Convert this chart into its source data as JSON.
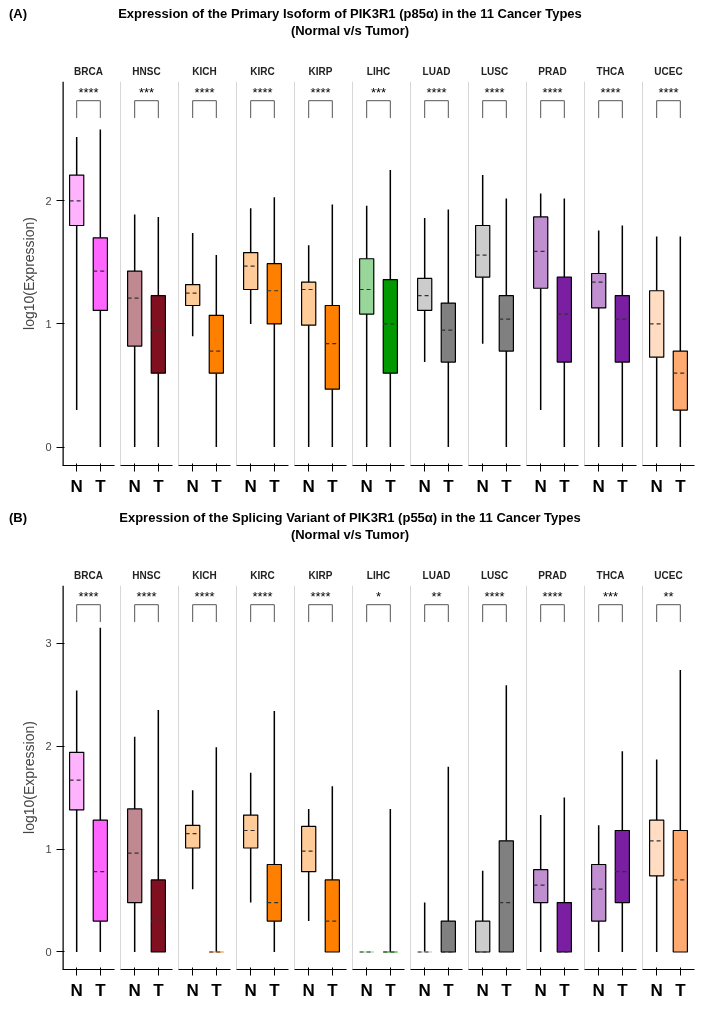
{
  "chart_data": [
    {
      "type": "box",
      "title": "BRCA",
      "ylabel": "log10(Expression)",
      "categories": [
        "N",
        "T"
      ],
      "ylim": [
        -0.15,
        2.97
      ],
      "yticks": [
        0,
        1,
        2
      ],
      "grid": false,
      "annotations": [
        "****",
        "(A)",
        "Expression of the Primary Isoform of PIK3R1 (p85α) in the 11 Cancer Types",
        "(Normal v/s Tumor)"
      ],
      "colors": [
        "#ffb3ff",
        "#ff66ff"
      ],
      "boxes": [
        {
          "low": 0.3,
          "q1": 1.8,
          "median": 2.0,
          "q3": 2.21,
          "high": 2.52
        },
        {
          "low": 0,
          "q1": 1.11,
          "median": 1.43,
          "q3": 1.7,
          "high": 2.58
        }
      ]
    },
    {
      "type": "box",
      "title": "HNSC",
      "categories": [
        "N",
        "T"
      ],
      "ylim": [
        -0.15,
        2.97
      ],
      "tick_labels": "x",
      "grid": false,
      "annotations": [
        "***"
      ],
      "colors": [
        "#c08890",
        "#800f20"
      ],
      "boxes": [
        {
          "low": 0,
          "q1": 0.82,
          "median": 1.21,
          "q3": 1.43,
          "high": 1.89
        },
        {
          "low": 0,
          "q1": 0.6,
          "median": 0.95,
          "q3": 1.23,
          "high": 1.87
        }
      ]
    },
    {
      "type": "box",
      "title": "KICH",
      "categories": [
        "N",
        "T"
      ],
      "ylim": [
        -0.15,
        2.97
      ],
      "tick_labels": "x",
      "grid": false,
      "annotations": [
        "****"
      ],
      "colors": [
        "#ffcc99",
        "#ff8000"
      ],
      "boxes": [
        {
          "low": 0.9,
          "q1": 1.15,
          "median": 1.25,
          "q3": 1.32,
          "high": 1.74
        },
        {
          "low": 0,
          "q1": 0.6,
          "median": 0.78,
          "q3": 1.07,
          "high": 1.56
        }
      ]
    },
    {
      "type": "box",
      "title": "KIRC",
      "categories": [
        "N",
        "T"
      ],
      "ylim": [
        -0.15,
        2.97
      ],
      "tick_labels": "x",
      "grid": false,
      "annotations": [
        "****"
      ],
      "colors": [
        "#ffcc99",
        "#ff8000"
      ],
      "boxes": [
        {
          "low": 1.0,
          "q1": 1.28,
          "median": 1.47,
          "q3": 1.58,
          "high": 1.94
        },
        {
          "low": 0,
          "q1": 1.0,
          "median": 1.27,
          "q3": 1.49,
          "high": 2.03
        }
      ]
    },
    {
      "type": "box",
      "title": "KIRP",
      "categories": [
        "N",
        "T"
      ],
      "ylim": [
        -0.15,
        2.97
      ],
      "tick_labels": "x",
      "grid": false,
      "annotations": [
        "****"
      ],
      "colors": [
        "#ffcc99",
        "#ff8000"
      ],
      "boxes": [
        {
          "low": 0,
          "q1": 0.99,
          "median": 1.28,
          "q3": 1.34,
          "high": 1.64
        },
        {
          "low": 0,
          "q1": 0.47,
          "median": 0.84,
          "q3": 1.15,
          "high": 1.97
        }
      ]
    },
    {
      "type": "box",
      "title": "LIHC",
      "categories": [
        "N",
        "T"
      ],
      "ylim": [
        -0.15,
        2.97
      ],
      "tick_labels": "x",
      "grid": false,
      "annotations": [
        "***"
      ],
      "colors": [
        "#99d699",
        "#009900"
      ],
      "boxes": [
        {
          "low": 0,
          "q1": 1.08,
          "median": 1.28,
          "q3": 1.53,
          "high": 1.96
        },
        {
          "low": 0,
          "q1": 0.6,
          "median": 1.0,
          "q3": 1.36,
          "high": 2.25
        }
      ]
    },
    {
      "type": "box",
      "title": "LUAD",
      "categories": [
        "N",
        "T"
      ],
      "ylim": [
        -0.15,
        2.97
      ],
      "tick_labels": "x",
      "grid": false,
      "annotations": [
        "****"
      ],
      "colors": [
        "#cccccc",
        "#808080"
      ],
      "boxes": [
        {
          "low": 0.69,
          "q1": 1.11,
          "median": 1.23,
          "q3": 1.37,
          "high": 1.86
        },
        {
          "low": 0,
          "q1": 0.69,
          "median": 0.95,
          "q3": 1.17,
          "high": 1.93
        }
      ]
    },
    {
      "type": "box",
      "title": "LUSC",
      "categories": [
        "N",
        "T"
      ],
      "ylim": [
        -0.15,
        2.97
      ],
      "tick_labels": "x",
      "grid": false,
      "annotations": [
        "****"
      ],
      "colors": [
        "#cccccc",
        "#808080"
      ],
      "boxes": [
        {
          "low": 0.84,
          "q1": 1.38,
          "median": 1.56,
          "q3": 1.8,
          "high": 2.21
        },
        {
          "low": 0,
          "q1": 0.78,
          "median": 1.04,
          "q3": 1.23,
          "high": 2.02
        }
      ]
    },
    {
      "type": "box",
      "title": "PRAD",
      "categories": [
        "N",
        "T"
      ],
      "ylim": [
        -0.15,
        2.97
      ],
      "tick_labels": "x",
      "grid": false,
      "annotations": [
        "****"
      ],
      "colors": [
        "#c08fd0",
        "#7a1fa2"
      ],
      "boxes": [
        {
          "low": 0.3,
          "q1": 1.29,
          "median": 1.59,
          "q3": 1.87,
          "high": 2.06
        },
        {
          "low": 0,
          "q1": 0.69,
          "median": 1.08,
          "q3": 1.38,
          "high": 2.02
        }
      ]
    },
    {
      "type": "box",
      "title": "THCA",
      "categories": [
        "N",
        "T"
      ],
      "ylim": [
        -0.15,
        2.97
      ],
      "tick_labels": "x",
      "grid": false,
      "annotations": [
        "****"
      ],
      "colors": [
        "#c08fd0",
        "#7a1fa2"
      ],
      "boxes": [
        {
          "low": 0,
          "q1": 1.13,
          "median": 1.34,
          "q3": 1.41,
          "high": 1.76
        },
        {
          "low": 0,
          "q1": 0.69,
          "median": 1.04,
          "q3": 1.23,
          "high": 1.8
        }
      ]
    },
    {
      "type": "box",
      "title": "UCEC",
      "categories": [
        "N",
        "T"
      ],
      "ylim": [
        -0.15,
        2.97
      ],
      "tick_labels": "x",
      "grid": false,
      "annotations": [
        "****"
      ],
      "colors": [
        "#ffdcc2",
        "#ffaa70"
      ],
      "boxes": [
        {
          "low": 0,
          "q1": 0.73,
          "median": 1.0,
          "q3": 1.27,
          "high": 1.71
        },
        {
          "low": 0,
          "q1": 0.3,
          "median": 0.6,
          "q3": 0.78,
          "high": 1.71
        }
      ]
    },
    {
      "type": "box",
      "title": "BRCA",
      "ylabel": "log10(Expression)",
      "categories": [
        "N",
        "T"
      ],
      "ylim": [
        -0.17,
        3.56
      ],
      "yticks": [
        0,
        1,
        2,
        3
      ],
      "grid": false,
      "annotations": [
        "****",
        "(B)",
        "Expression of the Splicing Variant of PIK3R1 (p55α) in the 11 Cancer Types",
        "(Normal v/s Tumor)"
      ],
      "colors": [
        "#ffb3ff",
        "#ff66ff"
      ],
      "boxes": [
        {
          "low": 0,
          "q1": 1.38,
          "median": 1.67,
          "q3": 1.94,
          "high": 2.54
        },
        {
          "low": 0,
          "q1": 0.3,
          "median": 0.78,
          "q3": 1.28,
          "high": 3.15
        }
      ]
    },
    {
      "type": "box",
      "title": "HNSC",
      "categories": [
        "N",
        "T"
      ],
      "ylim": [
        -0.17,
        3.56
      ],
      "tick_labels": "x",
      "grid": false,
      "annotations": [
        "****"
      ],
      "colors": [
        "#c08890",
        "#800f20"
      ],
      "boxes": [
        {
          "low": 0,
          "q1": 0.48,
          "median": 0.96,
          "q3": 1.39,
          "high": 2.09
        },
        {
          "low": 0,
          "q1": 0,
          "median": 0.3,
          "q3": 0.7,
          "high": 2.35
        }
      ]
    },
    {
      "type": "box",
      "title": "KICH",
      "categories": [
        "N",
        "T"
      ],
      "ylim": [
        -0.17,
        3.56
      ],
      "tick_labels": "x",
      "grid": false,
      "annotations": [
        "****"
      ],
      "colors": [
        "#ffcc99",
        "#ff8000"
      ],
      "boxes": [
        {
          "low": 0.61,
          "q1": 1.01,
          "median": 1.15,
          "q3": 1.23,
          "high": 1.57
        },
        {
          "low": 0,
          "q1": 0,
          "median": 0,
          "q3": 0,
          "high": 1.99
        }
      ]
    },
    {
      "type": "box",
      "title": "KIRC",
      "categories": [
        "N",
        "T"
      ],
      "ylim": [
        -0.17,
        3.56
      ],
      "tick_labels": "x",
      "grid": false,
      "annotations": [
        "****"
      ],
      "colors": [
        "#ffcc99",
        "#ff8000"
      ],
      "boxes": [
        {
          "low": 0.48,
          "q1": 1.01,
          "median": 1.18,
          "q3": 1.33,
          "high": 1.74
        },
        {
          "low": 0,
          "q1": 0.3,
          "median": 0.48,
          "q3": 0.85,
          "high": 2.34
        }
      ]
    },
    {
      "type": "box",
      "title": "KIRP",
      "categories": [
        "N",
        "T"
      ],
      "ylim": [
        -0.17,
        3.56
      ],
      "tick_labels": "x",
      "grid": false,
      "annotations": [
        "****"
      ],
      "colors": [
        "#ffcc99",
        "#ff8000"
      ],
      "boxes": [
        {
          "low": 0.3,
          "q1": 0.78,
          "median": 0.98,
          "q3": 1.22,
          "high": 1.39
        },
        {
          "low": 0,
          "q1": 0,
          "median": 0.3,
          "q3": 0.7,
          "high": 1.61
        }
      ]
    },
    {
      "type": "box",
      "title": "LIHC",
      "categories": [
        "N",
        "T"
      ],
      "ylim": [
        -0.17,
        3.56
      ],
      "tick_labels": "x",
      "grid": false,
      "annotations": [
        "*"
      ],
      "colors": [
        "#99d699",
        "#009900"
      ],
      "boxes": [
        {
          "low": 0,
          "q1": 0,
          "median": 0,
          "q3": 0,
          "high": 0
        },
        {
          "low": 0,
          "q1": 0,
          "median": 0,
          "q3": 0,
          "high": 1.39
        }
      ]
    },
    {
      "type": "box",
      "title": "LUAD",
      "categories": [
        "N",
        "T"
      ],
      "ylim": [
        -0.17,
        3.56
      ],
      "tick_labels": "x",
      "grid": false,
      "annotations": [
        "**"
      ],
      "colors": [
        "#cccccc",
        "#808080"
      ],
      "boxes": [
        {
          "low": 0,
          "q1": 0,
          "median": 0,
          "q3": 0,
          "high": 0.48
        },
        {
          "low": 0,
          "q1": 0,
          "median": 0,
          "q3": 0.3,
          "high": 1.8
        }
      ]
    },
    {
      "type": "box",
      "title": "LUSC",
      "categories": [
        "N",
        "T"
      ],
      "ylim": [
        -0.17,
        3.56
      ],
      "tick_labels": "x",
      "grid": false,
      "annotations": [
        "****"
      ],
      "colors": [
        "#cccccc",
        "#808080"
      ],
      "boxes": [
        {
          "low": 0,
          "q1": 0,
          "median": 0,
          "q3": 0.3,
          "high": 0.79
        },
        {
          "low": 0,
          "q1": 0,
          "median": 0.48,
          "q3": 1.08,
          "high": 2.59
        }
      ]
    },
    {
      "type": "box",
      "title": "PRAD",
      "categories": [
        "N",
        "T"
      ],
      "ylim": [
        -0.17,
        3.56
      ],
      "tick_labels": "x",
      "grid": false,
      "annotations": [
        "****"
      ],
      "colors": [
        "#c08fd0",
        "#7a1fa2"
      ],
      "boxes": [
        {
          "low": 0,
          "q1": 0.48,
          "median": 0.65,
          "q3": 0.8,
          "high": 1.33
        },
        {
          "low": 0,
          "q1": 0,
          "median": 0,
          "q3": 0.48,
          "high": 1.5
        }
      ]
    },
    {
      "type": "box",
      "title": "THCA",
      "categories": [
        "N",
        "T"
      ],
      "ylim": [
        -0.17,
        3.56
      ],
      "tick_labels": "x",
      "grid": false,
      "annotations": [
        "***"
      ],
      "colors": [
        "#c08fd0",
        "#7a1fa2"
      ],
      "boxes": [
        {
          "low": 0,
          "q1": 0.3,
          "median": 0.61,
          "q3": 0.85,
          "high": 1.23
        },
        {
          "low": 0,
          "q1": 0.48,
          "median": 0.78,
          "q3": 1.18,
          "high": 1.95
        }
      ]
    },
    {
      "type": "box",
      "title": "UCEC",
      "categories": [
        "N",
        "T"
      ],
      "ylim": [
        -0.17,
        3.56
      ],
      "tick_labels": "x",
      "grid": false,
      "annotations": [
        "**"
      ],
      "colors": [
        "#ffdcc2",
        "#ffaa70"
      ],
      "boxes": [
        {
          "low": 0,
          "q1": 0.74,
          "median": 1.08,
          "q3": 1.28,
          "high": 1.87
        },
        {
          "low": 0,
          "q1": 0,
          "median": 0.7,
          "q3": 1.18,
          "high": 2.74
        }
      ]
    }
  ]
}
